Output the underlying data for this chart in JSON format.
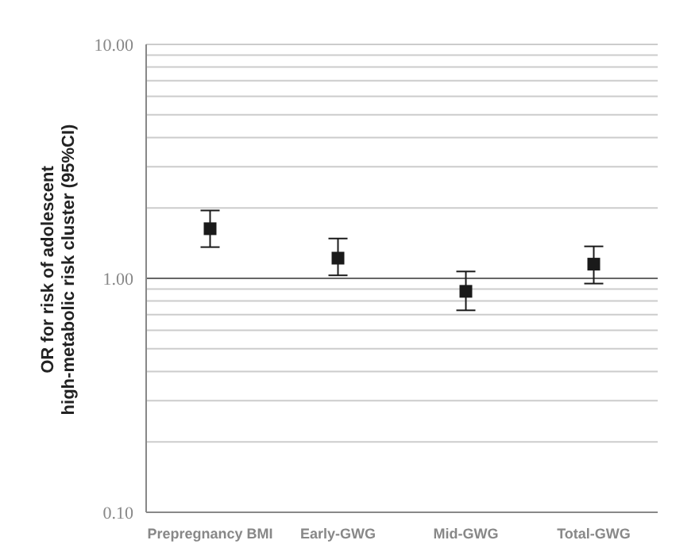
{
  "chart_data": {
    "type": "scatter",
    "ylabel": "OR for risk of adolescent\nhigh-metabolic risk cluster (95%CI)",
    "categories": [
      "Prepregnancy BMI",
      "Early-GWG",
      "Mid-GWG",
      "Total-GWG"
    ],
    "series": [
      {
        "color": "#1a1a1a",
        "values": [
          1.63,
          1.22,
          0.88,
          1.15
        ],
        "errors": [
          [
            1.36,
            1.95
          ],
          [
            1.03,
            1.48
          ],
          [
            0.73,
            1.07
          ],
          [
            0.95,
            1.37
          ]
        ]
      }
    ],
    "log": true,
    "ylim": [
      0.1,
      10
    ],
    "yticks": [
      {
        "value": 0.1,
        "label": "0.10"
      },
      {
        "value": 0.2,
        "label": null
      },
      {
        "value": 0.3,
        "label": null
      },
      {
        "value": 0.4,
        "label": null
      },
      {
        "value": 0.5,
        "label": null
      },
      {
        "value": 0.6,
        "label": null
      },
      {
        "value": 0.7,
        "label": null
      },
      {
        "value": 0.8,
        "label": null
      },
      {
        "value": 0.9,
        "label": null
      },
      {
        "value": 1,
        "label": "1.00"
      },
      {
        "value": 2,
        "label": null
      },
      {
        "value": 3,
        "label": null
      },
      {
        "value": 4,
        "label": null
      },
      {
        "value": 5,
        "label": null
      },
      {
        "value": 6,
        "label": null
      },
      {
        "value": 7,
        "label": null
      },
      {
        "value": 8,
        "label": null
      },
      {
        "value": 9,
        "label": null
      },
      {
        "value": 10,
        "label": "10.00"
      }
    ],
    "ref_lines": [
      {
        "axis": "y",
        "value": 1,
        "color": "#666666"
      }
    ],
    "grid": "y",
    "marker": "square",
    "legend": false
  }
}
